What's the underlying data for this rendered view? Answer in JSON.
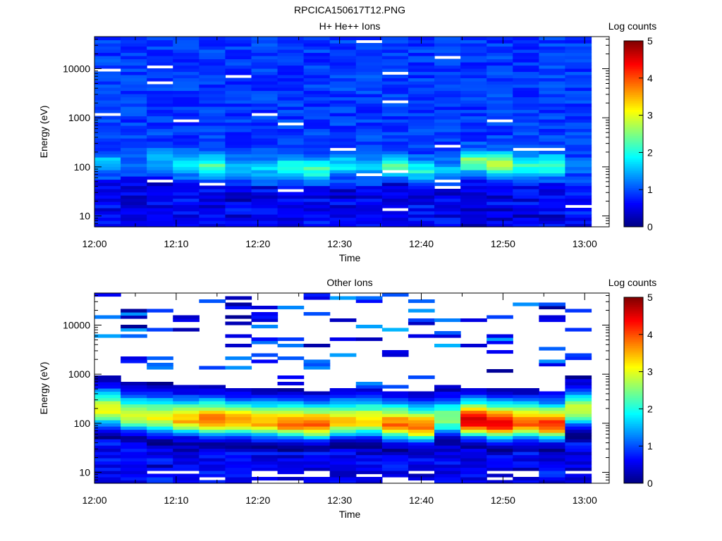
{
  "page_title": "RPCICA150617T12.PNG",
  "chart_data": [
    {
      "type": "heatmap",
      "title": "H+ He++ Ions",
      "xlabel": "Time",
      "ylabel": "Energy (eV)",
      "yscale": "log",
      "ylim": [
        6,
        45000
      ],
      "xlim": [
        "12:00",
        "13:03"
      ],
      "x_ticks": [
        "12:00",
        "12:10",
        "12:20",
        "12:30",
        "12:40",
        "12:50",
        "13:00"
      ],
      "y_ticks": [
        "10",
        "100",
        "1000",
        "10000"
      ],
      "colorbar": {
        "label": "Log counts",
        "range": [
          0,
          5
        ],
        "ticks": [
          "0",
          "1",
          "2",
          "3",
          "4",
          "5"
        ]
      },
      "columns": 19,
      "peak_energy_eV": [
        120,
        140,
        150,
        110,
        110,
        95,
        95,
        100,
        90,
        110,
        100,
        110,
        90,
        85,
        130,
        120,
        110,
        110,
        100
      ],
      "peak_log_counts": [
        1.6,
        1.2,
        1.6,
        1.9,
        2.2,
        1.6,
        1.7,
        2.0,
        2.2,
        1.8,
        1.6,
        2.2,
        2.0,
        1.5,
        2.6,
        2.8,
        2.1,
        2.3,
        1.1
      ],
      "background_log_counts": 0.9,
      "grid": false
    },
    {
      "type": "heatmap",
      "title": "Other Ions",
      "xlabel": "Time",
      "ylabel": "Energy (eV)",
      "yscale": "log",
      "ylim": [
        6,
        45000
      ],
      "xlim": [
        "12:00",
        "13:03"
      ],
      "x_ticks": [
        "12:00",
        "12:10",
        "12:20",
        "12:30",
        "12:40",
        "12:50",
        "13:00"
      ],
      "y_ticks": [
        "10",
        "100",
        "1000",
        "10000"
      ],
      "colorbar": {
        "label": "Log counts",
        "range": [
          0,
          5
        ],
        "ticks": [
          "0",
          "1",
          "2",
          "3",
          "4",
          "5"
        ]
      },
      "columns": 19,
      "peak_energy_eV": [
        180,
        140,
        130,
        120,
        115,
        110,
        105,
        100,
        95,
        110,
        110,
        95,
        85,
        120,
        110,
        100,
        100,
        95,
        180
      ],
      "peak_log_counts": [
        3.1,
        3.0,
        3.0,
        3.5,
        3.9,
        3.6,
        3.5,
        3.9,
        3.9,
        3.4,
        3.3,
        3.8,
        3.8,
        2.6,
        4.6,
        4.6,
        4.0,
        4.2,
        2.9
      ],
      "grid": false
    }
  ]
}
